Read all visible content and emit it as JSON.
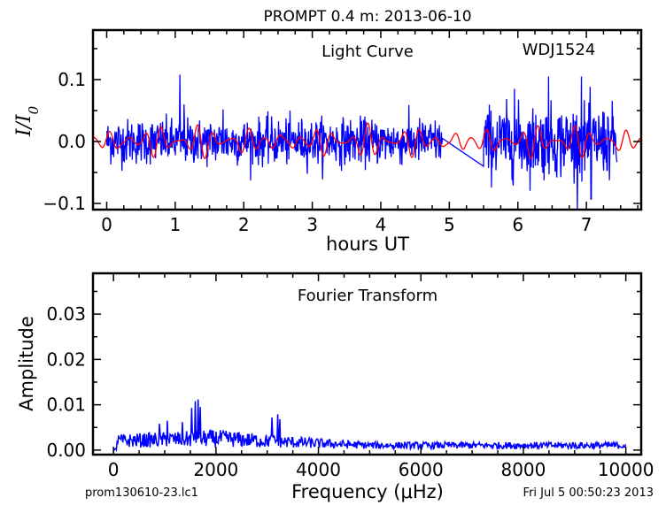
{
  "figure_title": "PROMPT 0.4 m:  2013-06-10",
  "footer": {
    "left": "prom130610-23.lc1",
    "right": "Fri Jul  5 00:50:23 2013"
  },
  "colors": {
    "light_curve": "#0000ff",
    "model": "#ff0000",
    "fourier": "#0000ff",
    "frame": "#000000"
  },
  "chart_data": [
    {
      "type": "line",
      "annotations": [
        "Light Curve",
        "WDJ1524"
      ],
      "xlabel": "hours UT",
      "ylabel": "I/I0",
      "xlim": [
        -0.2,
        7.8
      ],
      "ylim": [
        -0.11,
        0.18
      ],
      "x_ticks": [
        0,
        1,
        2,
        3,
        4,
        5,
        6,
        7
      ],
      "x_tick_labels": [
        "0",
        "1",
        "2",
        "3",
        "4",
        "5",
        "6",
        "7"
      ],
      "y_ticks": [
        -0.1,
        0.0,
        0.1
      ],
      "y_tick_labels": [
        "−0.1",
        "0.0",
        "0.1"
      ],
      "series": [
        {
          "style": "blue-data",
          "segments": [
            {
              "x_range": [
                0.0,
                4.9
              ],
              "std": 0.018
            },
            {
              "x_range": [
                5.5,
                7.45
              ],
              "std": 0.028
            }
          ],
          "gap_line": [
            [
              4.9,
              0.005
            ],
            [
              5.5,
              -0.04
            ]
          ],
          "peaks": [
            [
              1.07,
              0.108
            ],
            [
              1.13,
              0.06
            ],
            [
              1.7,
              0.052
            ],
            [
              5.95,
              0.085
            ],
            [
              6.45,
              0.105
            ],
            [
              6.93,
              0.105
            ],
            [
              7.07,
              -0.093
            ]
          ]
        },
        {
          "style": "red-model",
          "x_range": [
            -0.2,
            7.8
          ],
          "amplitude": 0.025,
          "components_period_hours": [
            0.25,
            0.19,
            0.61
          ]
        }
      ]
    },
    {
      "type": "line",
      "annotations": [
        "Fourier Transform"
      ],
      "xlabel": "Frequency (μHz)",
      "ylabel": "Amplitude",
      "xlim": [
        -400,
        10300
      ],
      "ylim": [
        -0.001,
        0.039
      ],
      "x_ticks": [
        0,
        2000,
        4000,
        6000,
        8000,
        10000
      ],
      "x_tick_labels": [
        "0",
        "2000",
        "4000",
        "6000",
        "8000",
        "10000"
      ],
      "y_ticks": [
        0.0,
        0.01,
        0.02,
        0.03
      ],
      "y_tick_labels": [
        "0.00",
        "0.01",
        "0.02",
        "0.03"
      ],
      "series": [
        {
          "style": "blue-fft",
          "x_range": [
            0,
            10000
          ],
          "peaks": [
            [
              900,
              0.0058
            ],
            [
              1050,
              0.0065
            ],
            [
              1350,
              0.0062
            ],
            [
              1530,
              0.0093
            ],
            [
              1600,
              0.0108
            ],
            [
              1650,
              0.0112
            ],
            [
              1700,
              0.0095
            ],
            [
              3100,
              0.0072
            ],
            [
              3200,
              0.0079
            ],
            [
              3250,
              0.0068
            ]
          ],
          "envelope": [
            [
              0,
              0.0035
            ],
            [
              2000,
              0.0045
            ],
            [
              3500,
              0.003
            ],
            [
              5000,
              0.0018
            ],
            [
              10000,
              0.0018
            ]
          ]
        }
      ]
    }
  ]
}
